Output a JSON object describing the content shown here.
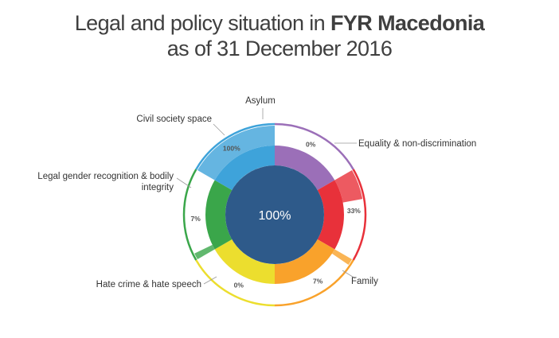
{
  "title": {
    "prefix": "Legal and policy situation in ",
    "bold": "FYR Macedonia",
    "line2": "as of 31 December 2016"
  },
  "chart_data": {
    "type": "pie",
    "center_label": "100%",
    "categories": [
      {
        "name": "Asylum",
        "value": "0%",
        "color": "#9b6fb8"
      },
      {
        "name": "Equality & non-discrimination",
        "value": "33%",
        "color": "#e8313a"
      },
      {
        "name": "Family",
        "value": "7%",
        "color": "#f9a22b"
      },
      {
        "name": "Hate crime & hate speech",
        "value": "0%",
        "color": "#ecde2e"
      },
      {
        "name": "Legal gender recognition & bodily integrity",
        "value": "7%",
        "color": "#3aa64a"
      },
      {
        "name": "Civil society space",
        "value": "100%",
        "color": "#3ea3da"
      }
    ]
  }
}
